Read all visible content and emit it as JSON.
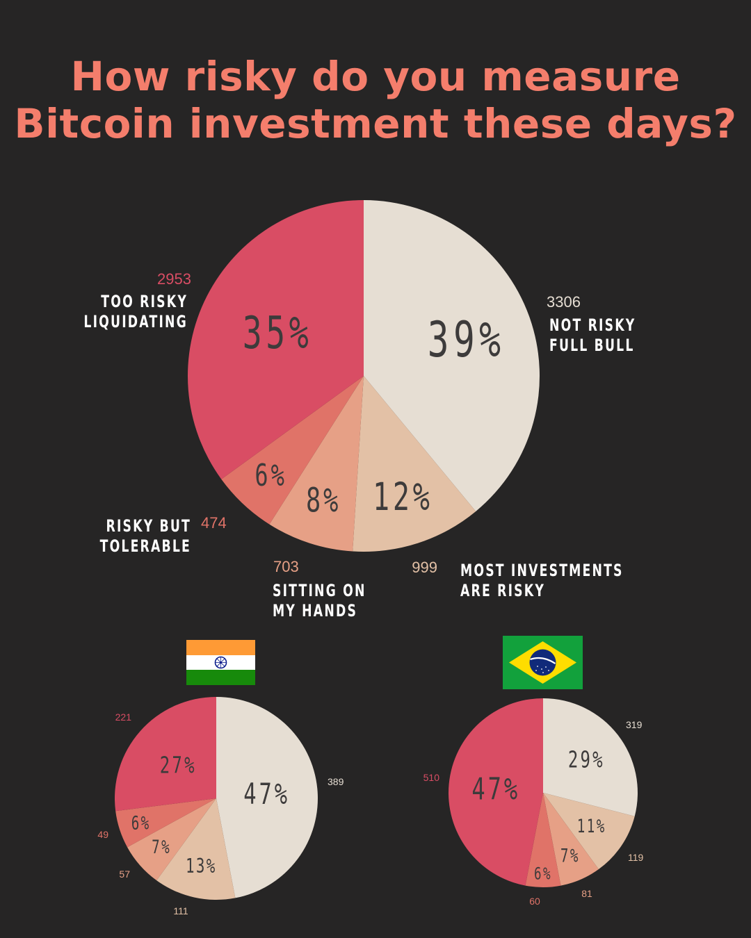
{
  "title_lines": [
    "How risky do you measure",
    "Bitcoin investment these days?"
  ],
  "colors": {
    "background": "#262525",
    "title": "#f47e6c",
    "not_risky": "#e6ded3",
    "most_investments_risky": "#e3c1a6",
    "sitting_on_hands": "#e6a086",
    "risky_but_tolerable": "#e07368",
    "too_risky": "#d94d64",
    "percent_text": "#3d3b3b",
    "category_text": "#ffffff"
  },
  "chart_data": [
    {
      "type": "pie",
      "slices": [
        {
          "label_lines": [
            "NOT RISKY",
            "FULL BULL"
          ],
          "count": 3306,
          "percent": 39,
          "color": "#e6ded3"
        },
        {
          "label_lines": [
            "MOST INVESTMENTS",
            "ARE RISKY"
          ],
          "count": 999,
          "percent": 12,
          "color": "#e3c1a6"
        },
        {
          "label_lines": [
            "SITTING ON",
            "MY HANDS"
          ],
          "count": 703,
          "percent": 8,
          "color": "#e6a086"
        },
        {
          "label_lines": [
            "RISKY BUT",
            "TOLERABLE"
          ],
          "count": 474,
          "percent": 6,
          "color": "#e07368"
        },
        {
          "label_lines": [
            "TOO RISKY",
            "LIQUIDATING"
          ],
          "count": 2953,
          "percent": 35,
          "color": "#d94d64"
        }
      ]
    },
    {
      "type": "pie",
      "flag": "india-flag",
      "slices": [
        {
          "count": 389,
          "percent": 47,
          "color": "#e6ded3"
        },
        {
          "count": 111,
          "percent": 13,
          "color": "#e3c1a6"
        },
        {
          "count": 57,
          "percent": 7,
          "color": "#e6a086"
        },
        {
          "count": 49,
          "percent": 6,
          "color": "#e07368"
        },
        {
          "count": 221,
          "percent": 27,
          "color": "#d94d64"
        }
      ]
    },
    {
      "type": "pie",
      "flag": "brazil-flag",
      "slices": [
        {
          "count": 319,
          "percent": 29,
          "color": "#e6ded3"
        },
        {
          "count": "119",
          "percent": 11,
          "color": "#e3c1a6"
        },
        {
          "count": 81,
          "percent": 7,
          "color": "#e6a086"
        },
        {
          "count": 60,
          "percent": 6,
          "color": "#e07368"
        },
        {
          "count": 510,
          "percent": 47,
          "color": "#d94d64"
        }
      ]
    }
  ]
}
